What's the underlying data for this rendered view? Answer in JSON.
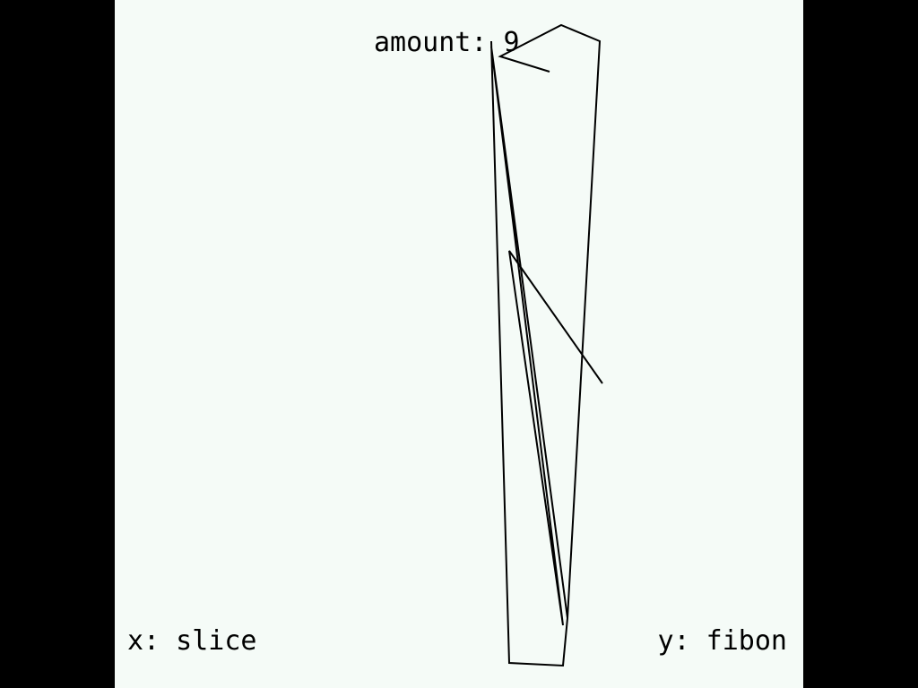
{
  "screen": {
    "background": "#000000",
    "canvas_background": "#f5fbf7",
    "line_color": "#000000"
  },
  "labels": {
    "amount": "amount: 9",
    "x_axis": "x: slice",
    "y_axis": "y: fibon"
  }
}
